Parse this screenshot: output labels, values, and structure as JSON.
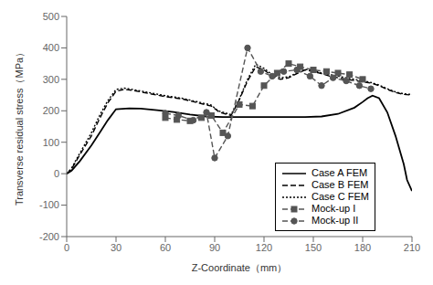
{
  "chart_data": {
    "type": "line",
    "xlabel": "Z-Coordinate（mm）",
    "ylabel": "Transverse residual stress（MPa）",
    "xlim": [
      0,
      210
    ],
    "ylim": [
      -200,
      500
    ],
    "xticks": [
      0,
      30,
      60,
      90,
      120,
      150,
      180,
      210
    ],
    "yticks": [
      -200,
      -100,
      0,
      100,
      200,
      300,
      400,
      500
    ],
    "grid": false,
    "legend": "lower right",
    "series": [
      {
        "name": "Case A FEM",
        "color": "#000000",
        "line_style": "solid",
        "x": [
          0,
          3,
          8,
          15,
          20,
          25,
          30,
          38,
          45,
          55,
          65,
          75,
          85,
          95,
          105,
          115,
          125,
          135,
          145,
          155,
          165,
          175,
          180,
          183,
          186,
          190,
          195,
          200,
          205,
          207,
          210
        ],
        "values": [
          0,
          10,
          40,
          90,
          130,
          170,
          205,
          208,
          207,
          202,
          196,
          188,
          182,
          180,
          180,
          180,
          180,
          180,
          180,
          182,
          190,
          210,
          228,
          240,
          248,
          240,
          195,
          120,
          30,
          -20,
          -55
        ]
      },
      {
        "name": "Case B FEM",
        "color": "#000000",
        "line_style": "dashed",
        "x": [
          0,
          3,
          8,
          15,
          20,
          25,
          30,
          35,
          40,
          50,
          60,
          70,
          80,
          88,
          93,
          100,
          105,
          110,
          115,
          120,
          125,
          130,
          135,
          140,
          145,
          150,
          155,
          160,
          165,
          170,
          175,
          180,
          185,
          190,
          195,
          200,
          205,
          210
        ],
        "values": [
          0,
          15,
          60,
          120,
          175,
          225,
          262,
          268,
          265,
          255,
          245,
          238,
          225,
          215,
          195,
          185,
          235,
          295,
          340,
          330,
          310,
          300,
          305,
          318,
          330,
          325,
          318,
          310,
          305,
          300,
          296,
          292,
          288,
          280,
          268,
          258,
          252,
          250
        ]
      },
      {
        "name": "Case C FEM",
        "color": "#000000",
        "line_style": "dotted",
        "x": [
          0,
          3,
          8,
          15,
          20,
          25,
          30,
          35,
          40,
          50,
          60,
          70,
          80,
          88,
          92,
          100,
          105,
          110,
          115,
          120,
          125,
          130,
          135,
          140,
          145,
          150,
          155,
          160,
          165,
          170,
          175,
          180,
          185,
          190,
          195,
          200,
          205,
          210
        ],
        "values": [
          0,
          18,
          65,
          130,
          185,
          232,
          268,
          272,
          268,
          258,
          248,
          240,
          228,
          218,
          200,
          188,
          238,
          300,
          348,
          335,
          315,
          305,
          308,
          320,
          332,
          328,
          320,
          315,
          310,
          305,
          300,
          296,
          290,
          282,
          270,
          260,
          254,
          252
        ]
      },
      {
        "name": "Mock-up I",
        "color": "#555555",
        "line_style": "dashed",
        "marker": "square",
        "x": [
          60,
          67,
          75,
          82,
          88,
          95,
          105,
          113,
          120,
          128,
          135,
          142,
          150,
          158,
          165,
          172,
          180
        ],
        "values": [
          178,
          172,
          168,
          178,
          185,
          130,
          220,
          215,
          280,
          320,
          350,
          340,
          330,
          325,
          320,
          315,
          300
        ]
      },
      {
        "name": "Mock-up II",
        "color": "#555555",
        "line_style": "dashed",
        "marker": "circle",
        "x": [
          60,
          68,
          77,
          85,
          90,
          98,
          110,
          118,
          125,
          132,
          140,
          148,
          155,
          162,
          170,
          178,
          185
        ],
        "values": [
          192,
          185,
          170,
          195,
          50,
          120,
          400,
          325,
          310,
          325,
          330,
          310,
          280,
          305,
          295,
          280,
          270
        ]
      }
    ]
  }
}
